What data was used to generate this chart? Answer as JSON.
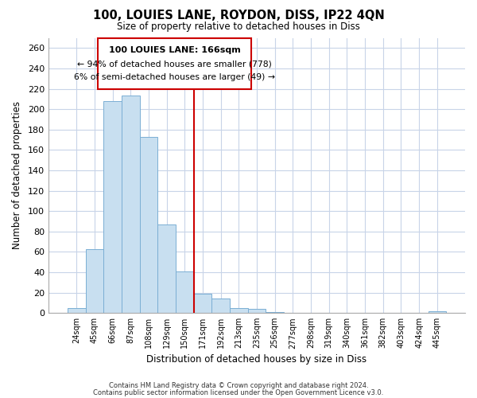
{
  "title": "100, LOUIES LANE, ROYDON, DISS, IP22 4QN",
  "subtitle": "Size of property relative to detached houses in Diss",
  "xlabel": "Distribution of detached houses by size in Diss",
  "ylabel": "Number of detached properties",
  "bar_labels": [
    "24sqm",
    "45sqm",
    "66sqm",
    "87sqm",
    "108sqm",
    "129sqm",
    "150sqm",
    "171sqm",
    "192sqm",
    "213sqm",
    "235sqm",
    "256sqm",
    "277sqm",
    "298sqm",
    "319sqm",
    "340sqm",
    "361sqm",
    "382sqm",
    "403sqm",
    "424sqm",
    "445sqm"
  ],
  "bar_values": [
    5,
    63,
    208,
    213,
    173,
    87,
    41,
    19,
    14,
    5,
    4,
    1,
    0,
    0,
    0,
    0,
    0,
    0,
    0,
    0,
    2
  ],
  "bar_color": "#c8dff0",
  "bar_edge_color": "#7bafd4",
  "vline_color": "#cc0000",
  "ylim": [
    0,
    270
  ],
  "yticks": [
    0,
    20,
    40,
    60,
    80,
    100,
    120,
    140,
    160,
    180,
    200,
    220,
    240,
    260
  ],
  "annotation_title": "100 LOUIES LANE: 166sqm",
  "annotation_line1": "← 94% of detached houses are smaller (778)",
  "annotation_line2": "6% of semi-detached houses are larger (49) →",
  "annotation_box_color": "#ffffff",
  "annotation_box_edge": "#cc0000",
  "footnote1": "Contains HM Land Registry data © Crown copyright and database right 2024.",
  "footnote2": "Contains public sector information licensed under the Open Government Licence v3.0.",
  "background_color": "#ffffff",
  "grid_color": "#c8d4e8"
}
